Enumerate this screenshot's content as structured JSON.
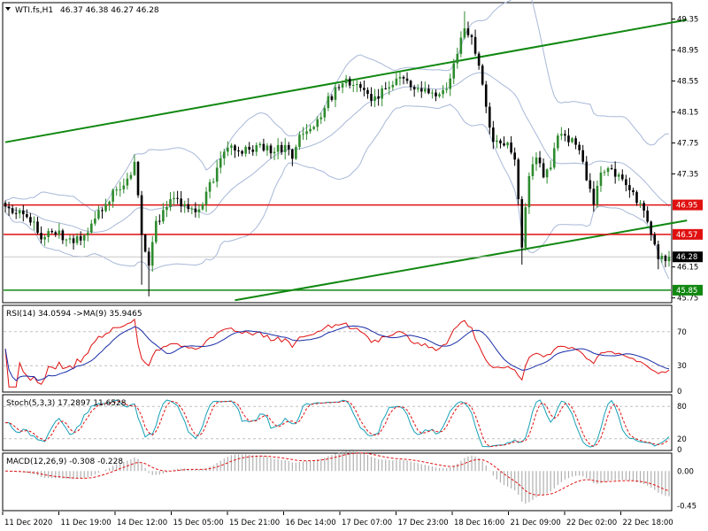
{
  "header": {
    "symbol": "WTI.fs,H1",
    "ohlc": "46.37 46.38 46.27 46.28"
  },
  "colors": {
    "bullish": "#2e8b2e",
    "bearish": "#000000",
    "trendline": "#118811",
    "level_line": "#e01010",
    "bollinger": "#a8b8d8",
    "rsi": "#e01010",
    "rsi_ma": "#1a2ea8",
    "stoch_main": "#16a0b8",
    "stoch_signal": "#e01010",
    "macd_hist": "#b0b0b0",
    "macd_signal": "#e01010",
    "price_tag": "#000000",
    "red_tag": "#e01010",
    "green_tag": "#118811"
  },
  "chart_data": [
    {
      "type": "candlestick",
      "title": "WTI.fs,H1",
      "x_labels": [
        "11 Dec 2020",
        "11 Dec 19:00",
        "14 Dec 12:00",
        "15 Dec 05:00",
        "15 Dec 21:00",
        "16 Dec 14:00",
        "17 Dec 07:00",
        "17 Dec 23:00",
        "18 Dec 16:00",
        "21 Dec 09:00",
        "22 Dec 02:00",
        "22 Dec 18:00"
      ],
      "y_ticks": [
        "49.35",
        "48.95",
        "48.55",
        "48.15",
        "47.75",
        "47.35",
        "46.95",
        "46.57",
        "46.28",
        "46.15",
        "45.85",
        "45.75"
      ],
      "ylim": [
        45.7,
        49.55
      ],
      "last_price": "46.28",
      "close_path": [
        [
          0,
          46.9
        ],
        [
          6,
          46.85
        ],
        [
          10,
          46.55
        ],
        [
          14,
          46.6
        ],
        [
          18,
          46.5
        ],
        [
          22,
          46.55
        ],
        [
          26,
          46.85
        ],
        [
          30,
          47.1
        ],
        [
          34,
          47.25
        ],
        [
          36,
          47.45
        ],
        [
          38,
          46.6
        ],
        [
          40,
          46.2
        ],
        [
          42,
          46.7
        ],
        [
          46,
          47.0
        ],
        [
          50,
          46.95
        ],
        [
          54,
          46.9
        ],
        [
          58,
          47.3
        ],
        [
          62,
          47.7
        ],
        [
          66,
          47.65
        ],
        [
          70,
          47.7
        ],
        [
          74,
          47.65
        ],
        [
          78,
          47.7
        ],
        [
          80,
          47.55
        ],
        [
          82,
          47.85
        ],
        [
          86,
          47.9
        ],
        [
          90,
          48.3
        ],
        [
          94,
          48.55
        ],
        [
          98,
          48.55
        ],
        [
          102,
          48.25
        ],
        [
          106,
          48.5
        ],
        [
          110,
          48.55
        ],
        [
          114,
          48.45
        ],
        [
          118,
          48.4
        ],
        [
          122,
          48.4
        ],
        [
          124,
          48.6
        ],
        [
          128,
          49.25
        ],
        [
          130,
          49.15
        ],
        [
          132,
          48.75
        ],
        [
          134,
          48.25
        ],
        [
          136,
          47.75
        ],
        [
          140,
          47.75
        ],
        [
          142,
          47.5
        ],
        [
          144,
          46.45
        ],
        [
          146,
          47.3
        ],
        [
          148,
          47.55
        ],
        [
          150,
          47.35
        ],
        [
          152,
          47.45
        ],
        [
          154,
          47.85
        ],
        [
          156,
          47.8
        ],
        [
          158,
          47.8
        ],
        [
          160,
          47.6
        ],
        [
          164,
          47.0
        ],
        [
          166,
          47.35
        ],
        [
          168,
          47.45
        ],
        [
          170,
          47.35
        ],
        [
          172,
          47.25
        ],
        [
          176,
          47.0
        ],
        [
          178,
          46.85
        ],
        [
          180,
          46.55
        ],
        [
          182,
          46.3
        ],
        [
          184,
          46.28
        ]
      ],
      "horizontal_levels": [
        {
          "label": "46.95",
          "value": 46.95
        },
        {
          "label": "46.57",
          "value": 46.57
        },
        {
          "label": "45.85",
          "value": 45.85
        }
      ],
      "trendlines": [
        {
          "from": [
            0,
            47.76
          ],
          "to": [
            190,
            49.34
          ]
        },
        {
          "from": [
            64,
            45.72
          ],
          "to": [
            190,
            46.75
          ]
        }
      ]
    },
    {
      "type": "line",
      "title": "RSI(14) 34.0594 ->MA(9) 35.9465",
      "y_ticks": [
        "70",
        "30",
        "0"
      ],
      "ylim": [
        0,
        100
      ],
      "guide_levels": [
        70,
        30
      ]
    },
    {
      "type": "line",
      "title": "Stoch(5,3,3) 17.2897 11.6528",
      "y_ticks": [
        "80",
        "20",
        "0"
      ],
      "ylim": [
        0,
        100
      ],
      "guide_levels": [
        80,
        20
      ]
    },
    {
      "type": "bar",
      "title": "MACD(12,26,9) -0.308 -0.228",
      "y_ticks": [
        "0.00",
        "-0.45"
      ],
      "ylim": [
        -0.5,
        0.22
      ]
    }
  ]
}
